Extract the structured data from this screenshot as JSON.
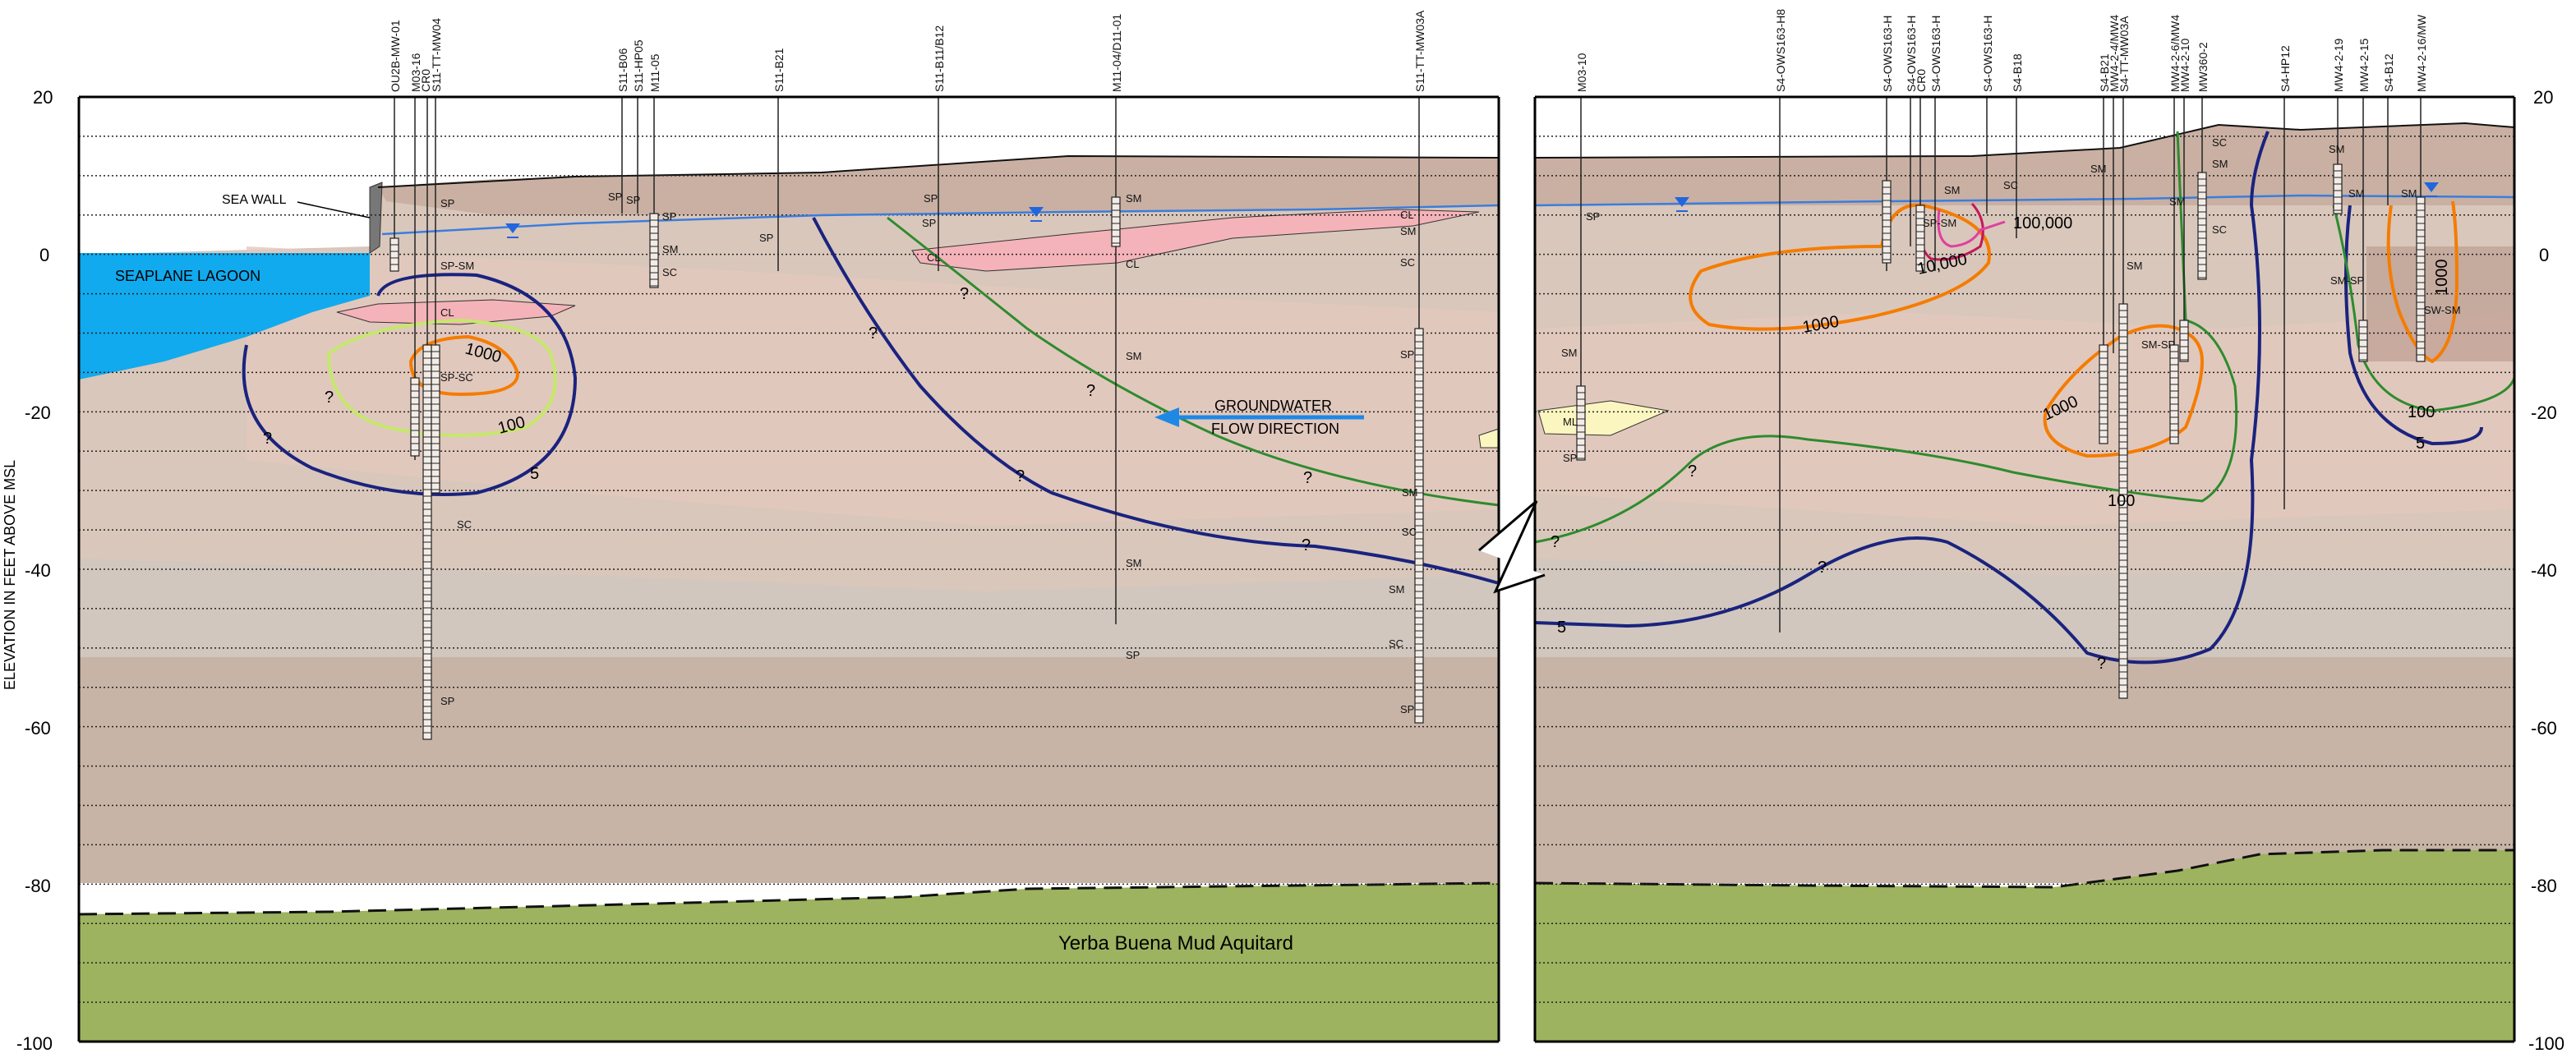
{
  "axis": {
    "ylabel": "ELEVATION IN FEET ABOVE MSL",
    "ticks": [
      "20",
      "0",
      "-20",
      "-40",
      "-60",
      "-80",
      "-100"
    ]
  },
  "labels": {
    "sea_wall": "SEA WALL",
    "seaplane_lagoon": "SEAPLANE LAGOON",
    "groundwater_line1": "GROUNDWATER",
    "groundwater_line2": "FLOW DIRECTION",
    "aquitard": "Yerba Buena Mud Aquitard"
  },
  "left_borings": [
    "OU2B-MW-01",
    "M03-16",
    "CR0",
    "S11-TT-MW04",
    "S11-B06",
    "S11-HP05",
    "M11-05",
    "S11-B21",
    "S11-B11/B12",
    "M11-04/D11-01",
    "S11-TT-MW03A"
  ],
  "right_borings": [
    "M03-10",
    "S4-OWS163-H8",
    "S4-OWS163-H",
    "S4-OWS163-H",
    "CR0",
    "S4-OWS163-H",
    "S4-OWS163-H",
    "S4-B18",
    "S4-B21",
    "MW4-2-4/MW4",
    "S4-TT-MW03A",
    "MW4-2-6/MW4",
    "MW4-2-10",
    "MW360-2",
    "S4-HP12",
    "MW4-2-19",
    "MW4-2-15",
    "S4-B12",
    "MW4-2-16/MW"
  ],
  "soil_labels": {
    "sp": "SP",
    "sp_sm": "SP-SM",
    "cl": "CL",
    "sp_sc": "SP-SC",
    "sc": "SC",
    "sm": "SM",
    "ml": "ML",
    "sm_sp": "SM-SP",
    "sw_sm": "SW-SM"
  },
  "contours": {
    "c5": "5",
    "c100": "100",
    "c1000": "1000",
    "c10000": "10,000",
    "c100000": "100,000"
  },
  "unknown_mark": "?",
  "colors": {
    "water_line": "#3b7ddd",
    "lagoon": "#11aaee",
    "aquitard": "#9db35f",
    "contour_5": "#1a237e",
    "contour_100": "#2e8b2e",
    "contour_1000": "#f57c00",
    "contour_10000": "#c2185b",
    "contour_100000": "#e040a0",
    "contour_100_left": "#c5e86c"
  }
}
